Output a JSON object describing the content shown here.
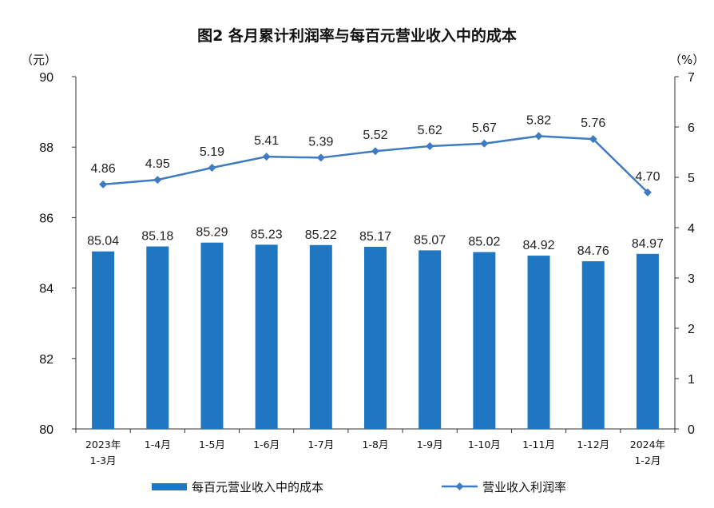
{
  "chart_data": {
    "type": "bar",
    "title": "图2  各月累计利润率与每百元营业收入中的成本",
    "y_left_unit": "（元）",
    "y_right_unit": "（%）",
    "ylim_left": [
      80,
      90
    ],
    "ylim_right": [
      0,
      7
    ],
    "yticks_left": [
      "80",
      "82",
      "84",
      "86",
      "88",
      "90"
    ],
    "yticks_right": [
      "0",
      "1",
      "2",
      "3",
      "4",
      "5",
      "6",
      "7"
    ],
    "categories": [
      [
        "2023年",
        "1-3月"
      ],
      [
        "1-4月"
      ],
      [
        "1-5月"
      ],
      [
        "1-6月"
      ],
      [
        "1-7月"
      ],
      [
        "1-8月"
      ],
      [
        "1-9月"
      ],
      [
        "1-10月"
      ],
      [
        "1-11月"
      ],
      [
        "1-12月"
      ],
      [
        "2024年",
        "1-2月"
      ]
    ],
    "series": [
      {
        "name": "每百元营业收入中的成本",
        "kind": "bar",
        "axis": "left",
        "color": "#1F77C4",
        "values": [
          85.04,
          85.18,
          85.29,
          85.23,
          85.22,
          85.17,
          85.07,
          85.02,
          84.92,
          84.76,
          84.97
        ],
        "labels": [
          "85.04",
          "85.18",
          "85.29",
          "85.23",
          "85.22",
          "85.17",
          "85.07",
          "85.02",
          "84.92",
          "84.76",
          "84.97"
        ]
      },
      {
        "name": "营业收入利润率",
        "kind": "line",
        "axis": "right",
        "color": "#3F7BC1",
        "values": [
          4.86,
          4.95,
          5.19,
          5.41,
          5.39,
          5.52,
          5.62,
          5.67,
          5.82,
          5.76,
          4.7
        ],
        "labels": [
          "4.86",
          "4.95",
          "5.19",
          "5.41",
          "5.39",
          "5.52",
          "5.62",
          "5.67",
          "5.82",
          "5.76",
          "4.70"
        ]
      }
    ],
    "legend": "bottom",
    "grid": false
  }
}
